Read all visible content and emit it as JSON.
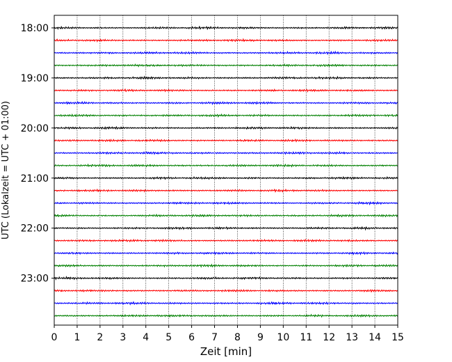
{
  "chart_data": {
    "type": "line",
    "title": "",
    "xlabel": "Zeit  [min]",
    "ylabel": "UTC (Lokalzeit = UTC + 01:00)",
    "xlim": [
      0,
      15
    ],
    "x_ticks": [
      "0",
      "1",
      "2",
      "3",
      "4",
      "5",
      "6",
      "7",
      "8",
      "9",
      "10",
      "11",
      "12",
      "13",
      "14",
      "15"
    ],
    "y_ticks": [
      {
        "label": "18:00",
        "row": 0
      },
      {
        "label": "19:00",
        "row": 4
      },
      {
        "label": "20:00",
        "row": 8
      },
      {
        "label": "21:00",
        "row": 12
      },
      {
        "label": "22:00",
        "row": 16
      },
      {
        "label": "23:00",
        "row": 20
      }
    ],
    "grid": "vertical dotted at each minute",
    "row_count": 24,
    "row_interval_min": 15,
    "start_time": "18:00",
    "color_cycle": [
      "#000000",
      "#ff0000",
      "#0000ff",
      "#008000"
    ]
  }
}
